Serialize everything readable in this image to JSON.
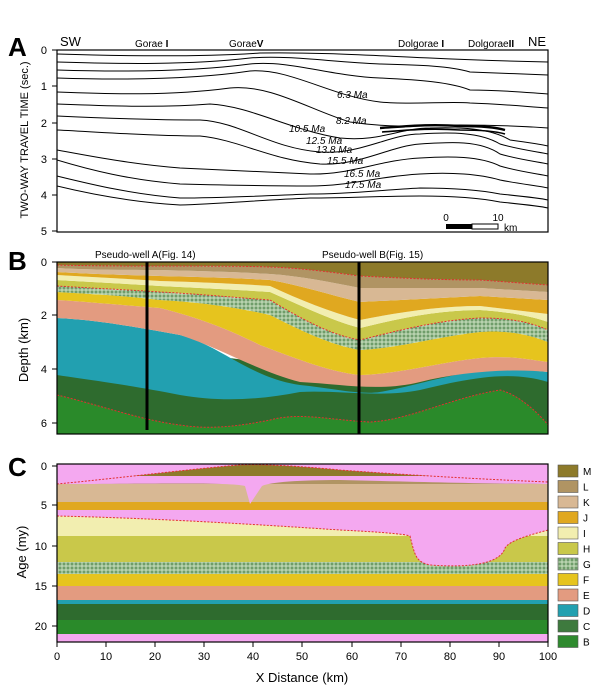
{
  "panel_a": {
    "letter": "A",
    "ylabel": "TWO-WAY TRAVEL TIME (sec.)",
    "y_ticks": [
      "0",
      "1",
      "2",
      "3",
      "4",
      "5"
    ],
    "sw": "SW",
    "ne": "NE",
    "wells": [
      {
        "name": "Gorae",
        "num": "I"
      },
      {
        "name": "Gorae",
        "num": "V"
      },
      {
        "name": "Dolgorae",
        "num": "I"
      },
      {
        "name": "Dolgorae",
        "num": "II"
      }
    ],
    "horizon_labels": [
      "6.3 Ma",
      "8.2 Ma",
      "10.5 Ma",
      "12.5 Ma",
      "13.8 Ma",
      "15.5 Ma",
      "16.5 Ma",
      "17.5 Ma"
    ],
    "scale": {
      "start": "0",
      "end": "10",
      "unit": "km"
    }
  },
  "panel_b": {
    "letter": "B",
    "ylabel": "Depth (km)",
    "y_ticks": [
      "0",
      "2",
      "4",
      "6"
    ],
    "wells": [
      "Pseudo-well  A(Fig. 14)",
      "Pseudo-well  B(Fig. 15)"
    ]
  },
  "panel_c": {
    "letter": "C",
    "ylabel": "Age (my)",
    "y_ticks": [
      "0",
      "5",
      "10",
      "15",
      "20"
    ],
    "x_ticks": [
      "0",
      "10",
      "20",
      "30",
      "40",
      "50",
      "60",
      "70",
      "80",
      "90",
      "100"
    ],
    "xlabel": "X Distance (km)"
  },
  "legend": [
    {
      "label": "M",
      "color": "#8d7a2a"
    },
    {
      "label": "L",
      "color": "#b09463"
    },
    {
      "label": "K",
      "color": "#d8b894"
    },
    {
      "label": "J",
      "color": "#e0a820"
    },
    {
      "label": "I",
      "color": "#f2eeb0"
    },
    {
      "label": "H",
      "color": "#c9c84a"
    },
    {
      "label": "G",
      "color": "#8fb08a"
    },
    {
      "label": "F",
      "color": "#e6c41e"
    },
    {
      "label": "E",
      "color": "#e39b80"
    },
    {
      "label": "D",
      "color": "#22a0b0"
    },
    {
      "label": "C",
      "color": "#3e7a3e"
    },
    {
      "label": "B",
      "color": "#2e8a2e"
    }
  ],
  "pink": "#f4a8f0"
}
